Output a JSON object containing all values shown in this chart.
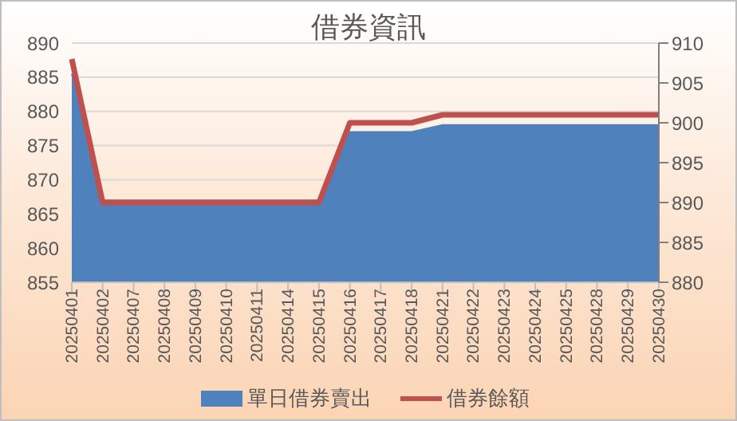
{
  "chart_data": {
    "type": "area",
    "title": "借券資訊",
    "categories": [
      "20250401",
      "20250402",
      "20250407",
      "20250408",
      "20250409",
      "20250410",
      "20250411",
      "20250414",
      "20250415",
      "20250416",
      "20250417",
      "20250418",
      "20250421",
      "20250422",
      "20250423",
      "20250424",
      "20250425",
      "20250428",
      "20250429",
      "20250430"
    ],
    "series": [
      {
        "name": "單日借券賣出",
        "color": "#4f81bd",
        "values": [
          885.5,
          867,
          867,
          867,
          867,
          867,
          867,
          867,
          867,
          877,
          877,
          877,
          878,
          878,
          878,
          878,
          878,
          878,
          878,
          878
        ]
      },
      {
        "name": "借券餘額",
        "type": "line",
        "color": "#c0504d",
        "axis": "y2",
        "values": [
          908,
          890,
          890,
          890,
          890,
          890,
          890,
          890,
          890,
          900,
          900,
          900,
          901,
          901,
          901,
          901,
          901,
          901,
          901,
          901
        ]
      }
    ],
    "ylim": [
      855,
      890
    ],
    "yticks": [
      855,
      860,
      865,
      870,
      875,
      880,
      885,
      890
    ],
    "y2lim": [
      880,
      910
    ],
    "y2ticks": [
      880,
      885,
      890,
      895,
      900,
      905,
      910
    ],
    "grid": "y",
    "legend": "bottom"
  }
}
